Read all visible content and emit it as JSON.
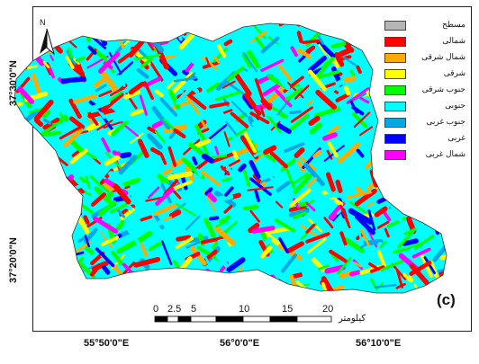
{
  "figure": {
    "panel_label": "(c)",
    "north_label": "N"
  },
  "axes": {
    "lat_labels": [
      "37°30'0\"N",
      "37°20'0\"N"
    ],
    "lon_labels": [
      "55°50'0\"E",
      "56°0'0\"E",
      "56°10'0\"E"
    ]
  },
  "legend": {
    "items": [
      {
        "label": "مسطح",
        "color": "#b5b5b5"
      },
      {
        "label": "شمالی",
        "color": "#ff0000"
      },
      {
        "label": "شمال شرقی",
        "color": "#ffaa00"
      },
      {
        "label": "شرقی",
        "color": "#ffff00"
      },
      {
        "label": "جنوب شرقی",
        "color": "#00ff00"
      },
      {
        "label": "جنوبی",
        "color": "#00ffff"
      },
      {
        "label": "جنوب غربی",
        "color": "#00a9e6"
      },
      {
        "label": "غربی",
        "color": "#0000ff"
      },
      {
        "label": "شمال غربی",
        "color": "#ff00ff"
      }
    ]
  },
  "scale_bar": {
    "ticks": [
      "0",
      "2.5",
      "5",
      "10",
      "15",
      "20"
    ],
    "unit": "کیلومتر"
  },
  "colors": {
    "frame": "#222222",
    "background": "#ffffff"
  }
}
